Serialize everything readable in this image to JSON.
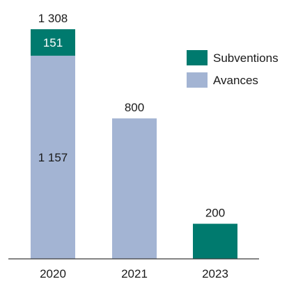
{
  "chart_data": {
    "type": "bar",
    "stacked": true,
    "categories": [
      "2020",
      "2021",
      "2023"
    ],
    "series": [
      {
        "name": "Avances",
        "values": [
          1157,
          800,
          0
        ],
        "color": "#a3b4d3"
      },
      {
        "name": "Subventions",
        "values": [
          151,
          0,
          200
        ],
        "color": "#007a6e"
      }
    ],
    "totals": [
      "1 308",
      "800",
      "200"
    ],
    "segment_labels": {
      "Avances": [
        "1 157",
        "",
        ""
      ],
      "Subventions": [
        "151",
        "",
        ""
      ]
    },
    "legend": {
      "position": "right",
      "entries": [
        "Subventions",
        "Avances"
      ]
    },
    "ylim": [
      0,
      1350
    ],
    "grid": false,
    "title": "",
    "xlabel": "",
    "ylabel": ""
  }
}
